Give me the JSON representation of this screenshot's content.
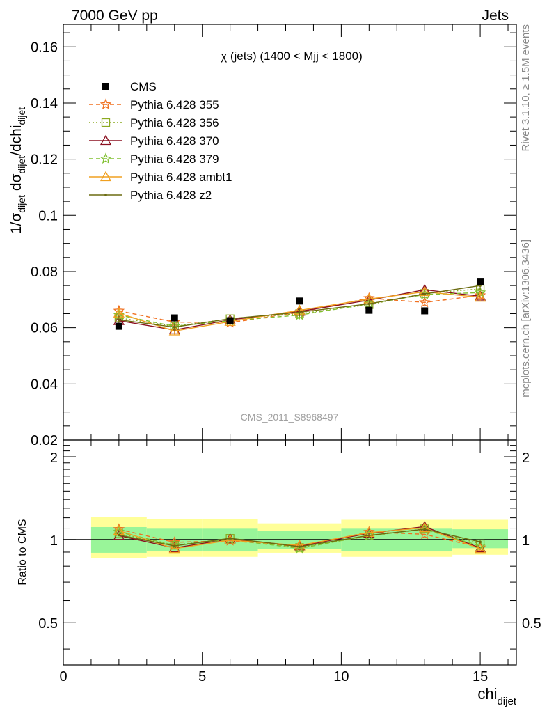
{
  "header": {
    "left": "7000 GeV pp",
    "right": "Jets"
  },
  "side": {
    "rivet": "Rivet 3.1.10, ≥ 1.5M events",
    "mcplots": "mcplots.cern.ch [arXiv:1306.3436]"
  },
  "chart_data": [
    {
      "type": "scatter",
      "title": "χ (jets) (1400 < Mjj < 1800)",
      "watermark": "CMS_2011_S8968497",
      "ylabel_parts": {
        "main": "1/σ",
        "sub1": "dijet",
        "mid": " dσ",
        "sub2": "dijet",
        "end": "/dchi",
        "sub3": "dijet"
      },
      "xlim": [
        0,
        16.3
      ],
      "ylim": [
        0.02,
        0.168
      ],
      "yticks": [
        0.02,
        0.04,
        0.06,
        0.08,
        0.1,
        0.12,
        0.14,
        0.16
      ],
      "yticklabels": [
        "0.02",
        "0.04",
        "0.06",
        "0.08",
        "0.1",
        "0.12",
        "0.14",
        "0.16"
      ],
      "x": [
        2,
        4,
        6,
        8.5,
        11,
        13,
        15
      ],
      "data": {
        "name": "CMS",
        "color": "#000000",
        "values": [
          0.0605,
          0.0635,
          0.0625,
          0.0695,
          0.0662,
          0.066,
          0.0765
        ]
      },
      "series": [
        {
          "name": "Pythia 6.428 355",
          "color": "#f07020",
          "dash": "6,4",
          "marker": "star",
          "values": [
            0.066,
            0.062,
            0.0618,
            0.0655,
            0.0705,
            0.069,
            0.0715
          ]
        },
        {
          "name": "Pythia 6.428 356",
          "color": "#8caa20",
          "dash": "2,3",
          "marker": "square-open",
          "values": [
            0.0635,
            0.0605,
            0.0632,
            0.065,
            0.0682,
            0.0722,
            0.0738
          ]
        },
        {
          "name": "Pythia 6.428 370",
          "color": "#8b1020",
          "dash": "",
          "marker": "triangle-open",
          "values": [
            0.0625,
            0.0592,
            0.0628,
            0.0658,
            0.0698,
            0.0735,
            0.0712
          ]
        },
        {
          "name": "Pythia 6.428 379",
          "color": "#80c030",
          "dash": "6,4",
          "marker": "star",
          "values": [
            0.0645,
            0.0605,
            0.0625,
            0.0645,
            0.0685,
            0.0718,
            0.0725
          ]
        },
        {
          "name": "Pythia 6.428 ambt1",
          "color": "#f0a020",
          "dash": "",
          "marker": "triangle-open",
          "values": [
            0.0652,
            0.0588,
            0.0622,
            0.0662,
            0.0702,
            0.0728,
            0.0708
          ]
        },
        {
          "name": "Pythia 6.428 z2",
          "color": "#6b6b10",
          "dash": "",
          "marker": "dot",
          "values": [
            0.0628,
            0.0602,
            0.0632,
            0.0655,
            0.0685,
            0.072,
            0.075
          ]
        }
      ]
    },
    {
      "type": "line",
      "ylabel": "Ratio to CMS",
      "xlabel_main": "chi",
      "xlabel_sub": "dijet",
      "xlim": [
        0,
        16.3
      ],
      "ylim": [
        0.35,
        2.3
      ],
      "log_y": true,
      "xticks": [
        0,
        5,
        10,
        15
      ],
      "xticklabels": [
        "0",
        "5",
        "10",
        "15"
      ],
      "yticks": [
        0.5,
        1,
        2
      ],
      "yticklabels": [
        "0.5",
        "1",
        "2"
      ],
      "bands": [
        {
          "x0": 1,
          "x1": 3,
          "inner": [
            0.895,
            1.11
          ],
          "outer": [
            0.855,
            1.205
          ]
        },
        {
          "x0": 3,
          "x1": 5,
          "inner": [
            0.905,
            1.095
          ],
          "outer": [
            0.865,
            1.19
          ]
        },
        {
          "x0": 5,
          "x1": 7,
          "inner": [
            0.905,
            1.095
          ],
          "outer": [
            0.865,
            1.19
          ]
        },
        {
          "x0": 7,
          "x1": 10,
          "inner": [
            0.925,
            1.075
          ],
          "outer": [
            0.895,
            1.145
          ]
        },
        {
          "x0": 10,
          "x1": 12,
          "inner": [
            0.905,
            1.095
          ],
          "outer": [
            0.865,
            1.18
          ]
        },
        {
          "x0": 12,
          "x1": 14,
          "inner": [
            0.905,
            1.095
          ],
          "outer": [
            0.865,
            1.18
          ]
        },
        {
          "x0": 14,
          "x1": 16,
          "inner": [
            0.93,
            1.09
          ],
          "outer": [
            0.88,
            1.18
          ]
        }
      ],
      "x": [
        2,
        4,
        6,
        8.5,
        11,
        13,
        15
      ],
      "series": [
        {
          "name": "Pythia 6.428 355",
          "values": [
            1.09,
            0.977,
            0.99,
            0.943,
            1.065,
            1.045,
            0.935
          ]
        },
        {
          "name": "Pythia 6.428 356",
          "values": [
            1.05,
            0.953,
            1.01,
            0.935,
            1.03,
            1.094,
            0.965
          ]
        },
        {
          "name": "Pythia 6.428 370",
          "values": [
            1.033,
            0.932,
            1.005,
            0.947,
            1.054,
            1.114,
            0.931
          ]
        },
        {
          "name": "Pythia 6.428 379",
          "values": [
            1.066,
            0.953,
            1.0,
            0.928,
            1.035,
            1.088,
            0.948
          ]
        },
        {
          "name": "Pythia 6.428 ambt1",
          "values": [
            1.078,
            0.926,
            0.995,
            0.952,
            1.06,
            1.103,
            0.925
          ]
        },
        {
          "name": "Pythia 6.428 z2",
          "values": [
            1.038,
            0.948,
            1.011,
            0.942,
            1.035,
            1.091,
            0.98
          ]
        }
      ]
    }
  ]
}
